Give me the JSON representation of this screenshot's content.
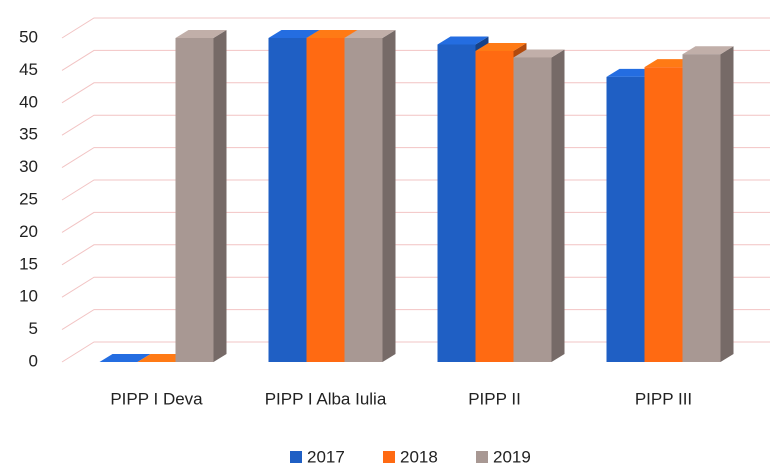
{
  "chart_data": {
    "type": "bar3d",
    "categories": [
      "PIPP  I Deva",
      "PIPP I Alba Iulia",
      "PIPP II",
      "PIPP III"
    ],
    "series": [
      {
        "name": "2017",
        "color": "#1f5fc4",
        "values": [
          0,
          50,
          49,
          44
        ]
      },
      {
        "name": "2018",
        "color": "#ff6a12",
        "values": [
          0,
          50,
          48,
          45.5
        ]
      },
      {
        "name": "2019",
        "color": "#a89893",
        "values": [
          50,
          50,
          47,
          47.5
        ]
      }
    ],
    "ylim": [
      0,
      50
    ],
    "yticks": [
      0,
      5,
      10,
      15,
      20,
      25,
      30,
      35,
      40,
      45,
      50
    ],
    "grid": true
  }
}
